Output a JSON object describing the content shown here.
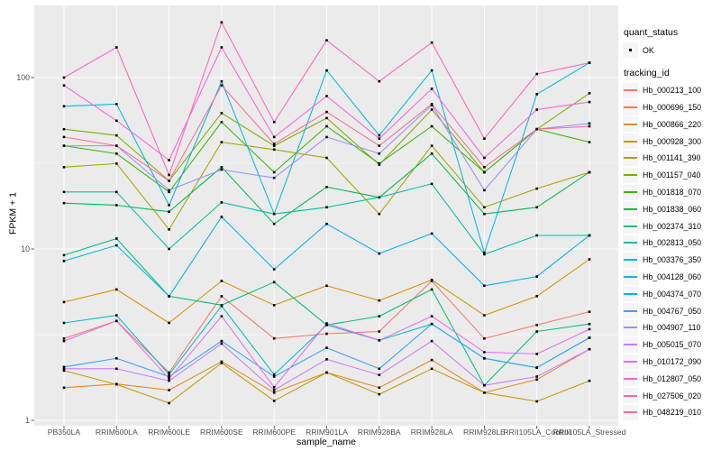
{
  "figure": {
    "colors": {
      "panel_bg": "#EBEBEB",
      "grid_major": "#FFFFFF",
      "grid_minor": "#F7F7F7",
      "point": "#000000",
      "tick": "#333333",
      "axis_text": "#4D4D4D",
      "axis_title": "#000000",
      "legend_key_bg": "#F5F5F5"
    }
  },
  "legend": {
    "quant_status": {
      "title": "quant_status",
      "items": [
        {
          "label": "OK",
          "symbol": "point",
          "color": "#000000"
        }
      ]
    },
    "tracking_id": {
      "title": "tracking_id"
    }
  },
  "chart_data": {
    "type": "line",
    "title": "",
    "xlabel": "sample_name",
    "ylabel": "FPKM + 1",
    "y_scale": "log10",
    "ylim": [
      1,
      280
    ],
    "y_ticks": [
      1,
      10,
      100
    ],
    "y_minor_ticks": [
      3.162,
      31.62
    ],
    "grid": true,
    "legend_position": "right",
    "quant_status": "OK",
    "categories": [
      "PB350LA",
      "RRIM600LA",
      "RRIM600LE",
      "RRIM600SE",
      "RRIM600PE",
      "RRIM901LA",
      "RRIM928BA",
      "RRIM928LA",
      "RRIM928LE",
      "RRII105LA_Control",
      "RRII105LA_Stressed"
    ],
    "series": [
      {
        "name": "Hb_000213_100",
        "color": "#F8766D",
        "values": [
          3.0,
          3.8,
          1.9,
          5.3,
          3.0,
          3.2,
          3.3,
          6.5,
          3.0,
          3.6,
          4.3
        ]
      },
      {
        "name": "Hb_000696_150",
        "color": "#E88526",
        "values": [
          1.55,
          1.63,
          1.5,
          2.2,
          1.45,
          1.9,
          1.55,
          2.25,
          1.45,
          1.73,
          2.6
        ]
      },
      {
        "name": "Hb_000866_220",
        "color": "#D89000",
        "values": [
          4.9,
          5.8,
          3.7,
          6.5,
          4.7,
          6.1,
          5.0,
          6.6,
          4.1,
          5.3,
          8.7
        ]
      },
      {
        "name": "Hb_000928_300",
        "color": "#C09B00",
        "values": [
          1.95,
          1.62,
          1.26,
          2.16,
          1.3,
          1.9,
          1.42,
          2.0,
          1.45,
          1.29,
          1.7
        ]
      },
      {
        "name": "Hb_001141_390",
        "color": "#A3A500",
        "values": [
          30,
          31.5,
          13,
          42,
          38,
          34,
          16,
          40,
          17.5,
          22.5,
          28
        ]
      },
      {
        "name": "Hb_001157_040",
        "color": "#7CAE00",
        "values": [
          50,
          46,
          25,
          62,
          40,
          58,
          31,
          65,
          28,
          50,
          81
        ]
      },
      {
        "name": "Hb_001818_070",
        "color": "#39B600",
        "values": [
          40,
          36,
          21.5,
          55,
          28,
          52,
          31.5,
          52,
          28,
          50,
          42
        ]
      },
      {
        "name": "Hb_001838_060",
        "color": "#00BB4E",
        "values": [
          18.5,
          18,
          16.5,
          30,
          14,
          23,
          20,
          36,
          16,
          17.5,
          28
        ]
      },
      {
        "name": "Hb_002374_310",
        "color": "#00BF7D",
        "values": [
          9.2,
          11.5,
          5.3,
          4.7,
          6.4,
          3.6,
          4.05,
          5.8,
          1.6,
          3.3,
          3.65
        ]
      },
      {
        "name": "Hb_002813_050",
        "color": "#00C1A3",
        "values": [
          21.5,
          21.5,
          10,
          18.7,
          16,
          17.5,
          20,
          24,
          9.3,
          12,
          12
        ]
      },
      {
        "name": "Hb_003376_350",
        "color": "#00BFC4",
        "values": [
          3.7,
          4.1,
          1.85,
          4.65,
          1.85,
          3.6,
          2.93,
          3.65,
          2.3,
          2.03,
          3.03
        ]
      },
      {
        "name": "Hb_004128_060",
        "color": "#00BAE0",
        "values": [
          68,
          70,
          18,
          95,
          16,
          110,
          46,
          110,
          9.5,
          80,
          122
        ]
      },
      {
        "name": "Hb_004374_070",
        "color": "#00B0F6",
        "values": [
          8.5,
          10.5,
          5.3,
          15.4,
          7.6,
          14,
          9.4,
          12.3,
          6.1,
          6.9,
          12
        ]
      },
      {
        "name": "Hb_004767_050",
        "color": "#35A2FF",
        "values": [
          2.05,
          2.3,
          1.8,
          2.9,
          1.8,
          2.65,
          2.0,
          3.65,
          2.3,
          2.03,
          3.03
        ]
      },
      {
        "name": "Hb_004907_110",
        "color": "#9590FF",
        "values": [
          40,
          40,
          22,
          29,
          26,
          45,
          36,
          69,
          22,
          50,
          54
        ]
      },
      {
        "name": "Hb_005015_070",
        "color": "#C77CFF",
        "values": [
          2.0,
          2.0,
          1.7,
          2.8,
          1.5,
          2.27,
          1.84,
          2.9,
          1.6,
          1.8,
          2.6
        ]
      },
      {
        "name": "Hb_010172_090",
        "color": "#E76BF3",
        "values": [
          2.9,
          3.8,
          1.75,
          4.05,
          1.56,
          3.68,
          2.93,
          4.05,
          2.5,
          2.44,
          3.4
        ]
      },
      {
        "name": "Hb_012807_050",
        "color": "#FA62DB",
        "values": [
          90,
          56,
          33,
          150,
          45,
          78,
          44,
          86,
          34,
          65,
          72
        ]
      },
      {
        "name": "Hb_027506_020",
        "color": "#FF62BC",
        "values": [
          100,
          150,
          27,
          210,
          55,
          165,
          95,
          160,
          44,
          105,
          122
        ]
      },
      {
        "name": "Hb_048219_010",
        "color": "#FF6A98",
        "values": [
          45,
          40,
          25,
          90,
          41,
          63,
          40,
          70,
          30,
          50,
          52
        ]
      }
    ]
  }
}
